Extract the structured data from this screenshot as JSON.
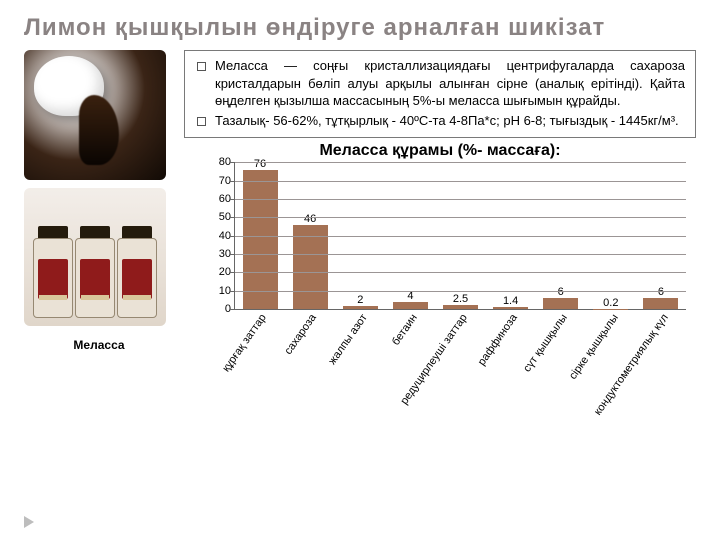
{
  "title": "Лимон  қышқылын  өндіруге  арналған  шикізат",
  "caption": "Меласса",
  "desc": {
    "p1": "Меласса — соңғы кристаллизациядағы центрифугаларда сахароза кристалдарын бөліп алуы арқылы алынған сірне (аналық ерітінді). Қайта өңделген қызылша массасының 5%-ы меласса шығымын құрайды.",
    "p2": "Тазалық- 56-62%, тұтқырлық - 40ºС-та 4-8Па*с; рН 6-8; тығыздық - 1445кг/м³."
  },
  "chart": {
    "title": "Меласса құрамы (%- массаға):",
    "type": "bar",
    "ylim": [
      0,
      80
    ],
    "ytick_step": 10,
    "bar_color": "#a47154",
    "grid_color": "#9b9595",
    "axis_color": "#666666",
    "background_color": "#ffffff",
    "label_fontsize": 11,
    "title_fontsize": 16,
    "categories": [
      "құрғақ заттар",
      "сахароза",
      "жалпы азот",
      "бетаин",
      "редуцирлеуші заттар",
      "раффиноза",
      "сүт қышқылы",
      "сірке қышқылы",
      "кондуктометриялық күл"
    ],
    "values": [
      76,
      46,
      2,
      4,
      2.5,
      1.4,
      6,
      0.2,
      6
    ]
  },
  "colors": {
    "title_text": "#8a8383",
    "body_text": "#000000"
  }
}
